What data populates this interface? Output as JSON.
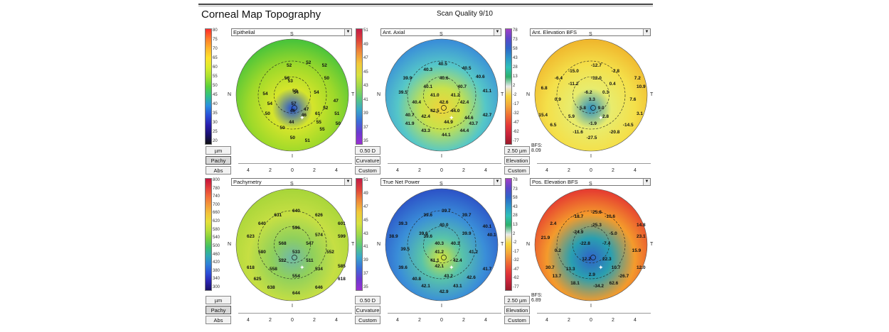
{
  "header": {
    "title": "Corneal Map Topography",
    "scan_quality": "Scan Quality 9/10"
  },
  "orientation": {
    "superior": "S",
    "inferior": "I",
    "nasal": "N",
    "temporal": "T"
  },
  "axis_ticks": [
    "4",
    "2",
    "0",
    "2",
    "4"
  ],
  "panels": [
    {
      "id": "epithelial",
      "dropdown": "Epithelial",
      "scale": [
        "80",
        "75",
        "70",
        "65",
        "60",
        "55",
        "50",
        "45",
        "40",
        "35",
        "30",
        "25",
        "20"
      ],
      "buttons": [
        "µm",
        "Pachy",
        "Abs"
      ],
      "pressed": 1,
      "colors": {
        "outer": "#4cc43a",
        "mid": "#9ed92a",
        "center": "#d6e52b",
        "accent": "#1f4fd8"
      },
      "values": [
        [
          "52",
          "45",
          "40"
        ],
        [
          "52",
          "62",
          "36"
        ],
        [
          "52",
          "76",
          "40"
        ],
        [
          "53",
          "46",
          "62"
        ],
        [
          "56",
          "43",
          "58"
        ],
        [
          "54",
          "51",
          "78"
        ],
        [
          "50",
          "78",
          "58"
        ],
        [
          "54",
          "24",
          "80"
        ],
        [
          "59",
          "50",
          "76"
        ],
        [
          "54",
          "69",
          "78"
        ],
        [
          "47",
          "86",
          "90"
        ],
        [
          "54",
          "28",
          "94"
        ],
        [
          "57",
          "49",
          "94"
        ],
        [
          "46",
          "48",
          "104"
        ],
        [
          "47",
          "60",
          "102"
        ],
        [
          "61",
          "70",
          "108"
        ],
        [
          "50",
          "26",
          "108"
        ],
        [
          "44",
          "47",
          "120"
        ],
        [
          "55",
          "71",
          "120"
        ],
        [
          "46",
          "58",
          "110"
        ],
        [
          "51",
          "87",
          "108"
        ],
        [
          "50",
          "88",
          "122"
        ],
        [
          "50",
          "39",
          "128"
        ],
        [
          "55",
          "74",
          "130"
        ],
        [
          "50",
          "48",
          "142"
        ],
        [
          "51",
          "61",
          "146"
        ],
        [
          "52",
          "77",
          "100"
        ]
      ],
      "bfs": ""
    },
    {
      "id": "ant-axial",
      "dropdown": "Ant. Axial",
      "scale": [
        "51",
        "49",
        "47",
        "45",
        "43",
        "41",
        "39",
        "37",
        "35"
      ],
      "buttons": [
        "0.50 D",
        "Curvature",
        "Custom"
      ],
      "pressed": -1,
      "colors": {
        "outer": "#3a8fd8",
        "mid": "#55c7c8",
        "center": "#c9e24a",
        "accent": "#f0d33a"
      },
      "values": [
        [
          "40.5",
          "47",
          "38"
        ],
        [
          "40.5",
          "68",
          "44"
        ],
        [
          "40.3",
          "34",
          "46"
        ],
        [
          "39.9",
          "16",
          "58"
        ],
        [
          "40.6",
          "80",
          "56"
        ],
        [
          "40.6",
          "48",
          "58"
        ],
        [
          "40.1",
          "34",
          "70"
        ],
        [
          "40.7",
          "64",
          "70"
        ],
        [
          "41.1",
          "86",
          "76"
        ],
        [
          "39.5",
          "12",
          "78"
        ],
        [
          "41.0",
          "40",
          "82"
        ],
        [
          "41.2",
          "58",
          "82"
        ],
        [
          "40.4",
          "24",
          "92"
        ],
        [
          "42.6",
          "48",
          "92"
        ],
        [
          "42.4",
          "66",
          "92"
        ],
        [
          "42.5",
          "40",
          "104"
        ],
        [
          "44.0",
          "58",
          "104"
        ],
        [
          "40.7",
          "18",
          "110"
        ],
        [
          "42.4",
          "32",
          "112"
        ],
        [
          "42.7",
          "86",
          "110"
        ],
        [
          "44.6",
          "70",
          "114"
        ],
        [
          "41.9",
          "18",
          "122"
        ],
        [
          "44.9",
          "52",
          "120"
        ],
        [
          "43.7",
          "74",
          "122"
        ],
        [
          "43.3",
          "32",
          "132"
        ],
        [
          "44.4",
          "66",
          "132"
        ],
        [
          "44.1",
          "50",
          "138"
        ]
      ],
      "bfs": ""
    },
    {
      "id": "ant-elevation",
      "dropdown": "Ant. Elevation BFS",
      "scale": [
        "78",
        "73",
        "58",
        "43",
        "28",
        "13",
        "2",
        "-2",
        "-17",
        "-32",
        "-47",
        "-62",
        "-77"
      ],
      "buttons": [
        "2.50 µm",
        "Elevation",
        "Custom"
      ],
      "pressed": -1,
      "colors": {
        "outer": "#f0b82e",
        "mid": "#f4e04a",
        "center": "#e8ec6e",
        "accent": "#2a8fc0"
      },
      "values": [
        [
          "-12.7",
          "50",
          "40"
        ],
        [
          "-15.0",
          "30",
          "48"
        ],
        [
          "-2.8",
          "68",
          "48"
        ],
        [
          "-6.4",
          "18",
          "58"
        ],
        [
          "-12.0",
          "50",
          "58"
        ],
        [
          "7.2",
          "88",
          "58"
        ],
        [
          "-11.2",
          "30",
          "66"
        ],
        [
          "0.4",
          "66",
          "66"
        ],
        [
          "10.9",
          "100",
          "70"
        ],
        [
          "6.8",
          "6",
          "72"
        ],
        [
          "-6.2",
          "44",
          "78"
        ],
        [
          "0.3",
          "60",
          "78"
        ],
        [
          "0.9",
          "18",
          "88"
        ],
        [
          "3.3",
          "48",
          "88"
        ],
        [
          "7.6",
          "84",
          "88"
        ],
        [
          "5.8",
          "40",
          "100"
        ],
        [
          "9.0",
          "56",
          "100"
        ],
        [
          "15.4",
          "4",
          "110"
        ],
        [
          "5.9",
          "30",
          "112"
        ],
        [
          "2.8",
          "60",
          "112"
        ],
        [
          "3.1",
          "96",
          "108"
        ],
        [
          "6.5",
          "14",
          "124"
        ],
        [
          "-1.9",
          "48",
          "122"
        ],
        [
          "-14.5",
          "78",
          "124"
        ],
        [
          "-11.6",
          "34",
          "134"
        ],
        [
          "-20.8",
          "66",
          "134"
        ],
        [
          "-27.5",
          "46",
          "142"
        ]
      ],
      "bfs": "BFS: 8.09"
    },
    {
      "id": "pachymetry",
      "dropdown": "Pachymetry",
      "scale": [
        "800",
        "780",
        "740",
        "700",
        "660",
        "620",
        "580",
        "540",
        "500",
        "460",
        "420",
        "380",
        "340",
        "300"
      ],
      "buttons": [
        "µm",
        "Pachy",
        "Abs"
      ],
      "pressed": 1,
      "colors": {
        "outer": "#a9d63a",
        "mid": "#c6df43",
        "center": "#8fd05c",
        "accent": "#6fb8a8"
      },
      "values": [
        [
          "640",
          "50",
          "34"
        ],
        [
          "631",
          "34",
          "40"
        ],
        [
          "626",
          "70",
          "40"
        ],
        [
          "640",
          "20",
          "52"
        ],
        [
          "601",
          "90",
          "52"
        ],
        [
          "596",
          "50",
          "58"
        ],
        [
          "574",
          "70",
          "68"
        ],
        [
          "623",
          "10",
          "70"
        ],
        [
          "599",
          "96",
          "70"
        ],
        [
          "568",
          "38",
          "80"
        ],
        [
          "547",
          "62",
          "80"
        ],
        [
          "580",
          "20",
          "92"
        ],
        [
          "533",
          "50",
          "92"
        ],
        [
          "552",
          "80",
          "92"
        ],
        [
          "522",
          "38",
          "104"
        ],
        [
          "511",
          "62",
          "104"
        ],
        [
          "618",
          "10",
          "114"
        ],
        [
          "558",
          "30",
          "116"
        ],
        [
          "534",
          "70",
          "116"
        ],
        [
          "585",
          "98",
          "112"
        ],
        [
          "554",
          "50",
          "126"
        ],
        [
          "625",
          "16",
          "130"
        ],
        [
          "618",
          "92",
          "130"
        ],
        [
          "638",
          "28",
          "142"
        ],
        [
          "646",
          "70",
          "142"
        ],
        [
          "644",
          "50",
          "150"
        ]
      ],
      "bfs": ""
    },
    {
      "id": "true-net-power",
      "dropdown": "True Net Power",
      "scale": [
        "51",
        "49",
        "47",
        "45",
        "43",
        "41",
        "39",
        "37",
        "35"
      ],
      "buttons": [
        "0.50 D",
        "Curvature",
        "Custom"
      ],
      "pressed": -1,
      "colors": {
        "outer": "#2d56c8",
        "mid": "#3a8ed8",
        "center": "#59c4a8",
        "accent": "#d6e43a"
      },
      "values": [
        [
          "39.7",
          "50",
          "34"
        ],
        [
          "39.6",
          "34",
          "40"
        ],
        [
          "39.7",
          "68",
          "40"
        ],
        [
          "39.3",
          "12",
          "52"
        ],
        [
          "40.0",
          "48",
          "54"
        ],
        [
          "40.1",
          "86",
          "56"
        ],
        [
          "39.6",
          "30",
          "66"
        ],
        [
          "39.9",
          "68",
          "66"
        ],
        [
          "39.6",
          "34",
          "70"
        ],
        [
          "40.3",
          "44",
          "80"
        ],
        [
          "40.3",
          "58",
          "80"
        ],
        [
          "40.1",
          "90",
          "68"
        ],
        [
          "38.9",
          "-6",
          "70"
        ],
        [
          "39.5",
          "14",
          "88"
        ],
        [
          "41.2",
          "44",
          "92"
        ],
        [
          "41.2",
          "74",
          "92"
        ],
        [
          "41.1",
          "40",
          "104"
        ],
        [
          "42.4",
          "60",
          "104"
        ],
        [
          "39.6",
          "12",
          "114"
        ],
        [
          "42.1",
          "44",
          "112"
        ],
        [
          "41.7",
          "86",
          "116"
        ],
        [
          "43.2",
          "52",
          "126"
        ],
        [
          "42.6",
          "72",
          "128"
        ],
        [
          "40.8",
          "24",
          "130"
        ],
        [
          "42.1",
          "32",
          "140"
        ],
        [
          "43.1",
          "60",
          "140"
        ],
        [
          "42.9",
          "48",
          "148"
        ]
      ],
      "bfs": ""
    },
    {
      "id": "pos-elevation",
      "dropdown": "Pos. Elevation BFS",
      "scale": [
        "78",
        "73",
        "58",
        "43",
        "28",
        "13",
        "2",
        "-2",
        "-17",
        "-32",
        "-47",
        "-62",
        "-77"
      ],
      "buttons": [
        "2.50 µm",
        "Elevation",
        "Custom"
      ],
      "pressed": -1,
      "colors": {
        "outer": "#e64030",
        "mid": "#f49b2c",
        "center": "#2a9fb0",
        "accent": "#2f63c8"
      },
      "values": [
        [
          "-25.8",
          "50",
          "36"
        ],
        [
          "-18.7",
          "34",
          "42"
        ],
        [
          "-10.6",
          "62",
          "42"
        ],
        [
          "2.4",
          "14",
          "52"
        ],
        [
          "-25.3",
          "50",
          "54"
        ],
        [
          "14.8",
          "90",
          "54"
        ],
        [
          "-24.9",
          "34",
          "64"
        ],
        [
          "-5.0",
          "66",
          "66"
        ],
        [
          "23.1",
          "100",
          "70"
        ],
        [
          "21.9",
          "6",
          "72"
        ],
        [
          "-22.8",
          "40",
          "80"
        ],
        [
          "-7.4",
          "60",
          "80"
        ],
        [
          "0.2",
          "18",
          "90"
        ],
        [
          "15.9",
          "86",
          "90"
        ],
        [
          "12.2",
          "42",
          "102"
        ],
        [
          "22.3",
          "60",
          "102"
        ],
        [
          "10.7",
          "68",
          "114"
        ],
        [
          "30.7",
          "10",
          "114"
        ],
        [
          "13.3",
          "28",
          "116"
        ],
        [
          "12.0",
          "90",
          "114"
        ],
        [
          "2.9",
          "48",
          "124"
        ],
        [
          "-26.7",
          "74",
          "126"
        ],
        [
          "13.7",
          "16",
          "126"
        ],
        [
          "18.1",
          "32",
          "136"
        ],
        [
          "-34.2",
          "52",
          "140"
        ],
        [
          "62.6",
          "66",
          "136"
        ]
      ],
      "bfs": "BFS: 6.89"
    }
  ]
}
